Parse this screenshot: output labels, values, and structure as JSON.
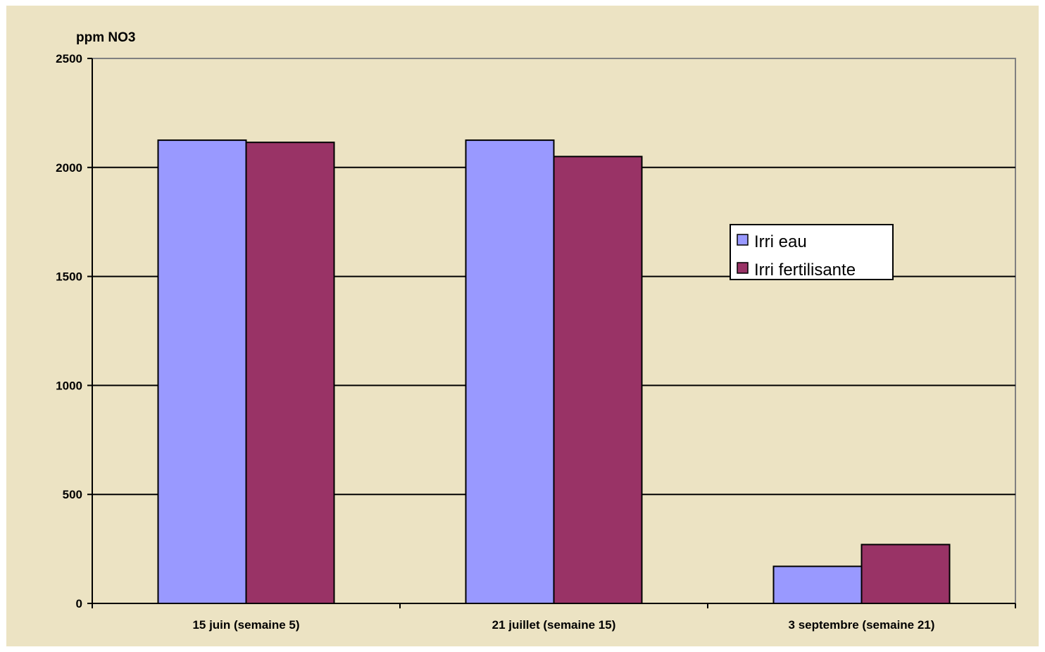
{
  "chart_data": {
    "type": "bar",
    "ylabel": "ppm NO3",
    "ylim": [
      0,
      2500
    ],
    "yticks": [
      0,
      500,
      1000,
      1500,
      2000,
      2500
    ],
    "grid": true,
    "legend_position": "right",
    "categories": [
      "15 juin (semaine 5)",
      "21 juillet (semaine 15)",
      "3 septembre (semaine 21)"
    ],
    "series": [
      {
        "name": "Irri eau",
        "color": "#9999ff",
        "values": [
          2125,
          2125,
          170
        ]
      },
      {
        "name": "Irri fertilisante",
        "color": "#993366",
        "values": [
          2115,
          2050,
          270
        ]
      }
    ]
  }
}
